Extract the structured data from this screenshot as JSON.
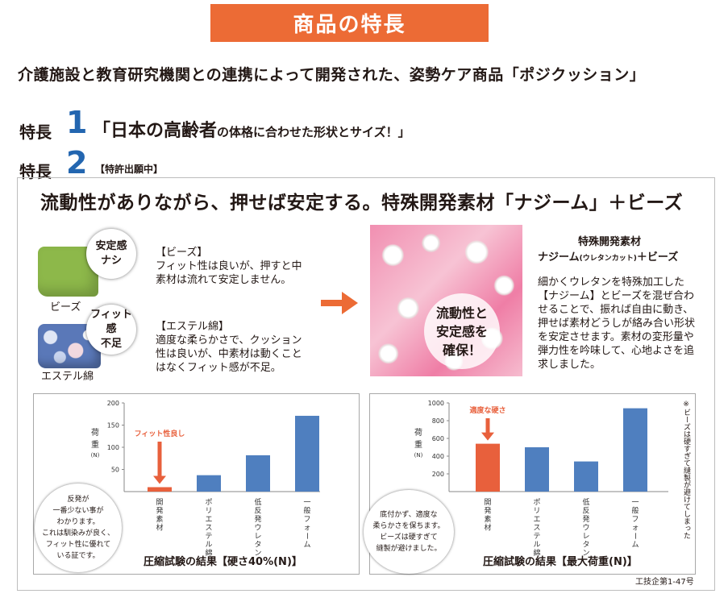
{
  "header": {
    "title": "商品の特長"
  },
  "intro": "介護施設と教育研究機関との連携によって開発された、姿勢ケア商品「ポジクッション」",
  "feature1": {
    "label": "特長",
    "number": "1",
    "text_main": "「日本の高齢者",
    "text_small": "の体格に合わせた形状とサイズ！」"
  },
  "feature2": {
    "label": "特長",
    "number": "2",
    "patent": "【特許出願中】"
  },
  "headline": "流動性がありながら、押せば安定する。特殊開発素材「ナジーム」＋ビーズ",
  "comparison": {
    "badge1": [
      "安定感",
      "ナシ"
    ],
    "badge2": [
      "フィット感",
      "不足"
    ],
    "beads_label": "ビーズ",
    "ester_label": "エステル綿",
    "beads_title": "【ビーズ】",
    "beads_desc": "フィット性は良いが、押すと中素材は流れて安定しません。",
    "ester_title": "【エステル綿】",
    "ester_desc": "適度な柔らかさで、クッション性は良いが、中素材は動くことはなくフィット感が不足。"
  },
  "photo_badge": [
    "流動性と",
    "安定感を",
    "確保！"
  ],
  "material": {
    "title": "特殊開発素材",
    "sub_main": "ナジーム",
    "sub_small": "(ウレタンカット)",
    "sub_end": "＋ビーズ",
    "desc": "細かくウレタンを特殊加工した【ナジーム】とビーズを混ぜ合わせることで、振れば自由に動き、押せば素材どうしが絡み合い形状を安定させます。素材の変形量や弾力性を吟味して、心地よさを追求しました。"
  },
  "chart_data": [
    {
      "type": "bar",
      "title": "圧縮試験の結果【硬さ40%(N)】",
      "ylabel": "荷重(N)",
      "categories": [
        "開発素材",
        "ポリエステル綿",
        "低反発ウレタン",
        "一般フォーム"
      ],
      "values": [
        10,
        37,
        82,
        171
      ],
      "ylim": [
        0,
        200
      ],
      "yticks": [
        50,
        100,
        150,
        200
      ],
      "grid": false,
      "annotation": "フィット性良し",
      "bubble": [
        "反発が",
        "一番少ない事が",
        "わかります。",
        "これは馴染みが良く、",
        "フィット性に優れて",
        "いる証です。"
      ]
    },
    {
      "type": "bar",
      "title": "圧縮試験の結果【最大荷重(N)】",
      "ylabel": "荷重(N)",
      "categories": [
        "開発素材",
        "ポリエステル綿",
        "低反発ウレタン",
        "一般フォーム"
      ],
      "values": [
        540,
        500,
        340,
        940
      ],
      "ylim": [
        0,
        1000
      ],
      "yticks": [
        200,
        400,
        600,
        800,
        1000
      ],
      "grid": false,
      "annotation": "適度な硬さ",
      "note": "※ビーズは硬すぎて縫製が避けてしまった",
      "bubble": [
        "底付かず、適度な",
        "柔らかさを保ちます。",
        "ビーズは硬すぎて",
        "縫製が避けました。"
      ]
    }
  ],
  "colors": {
    "accent": "#ec6b35",
    "bar_blue": "#4f7fbf",
    "bar_highlight": "#e8603c",
    "feature_blue": "#2366b0"
  },
  "footer": {
    "doc_number": "工技企第1-47号"
  }
}
